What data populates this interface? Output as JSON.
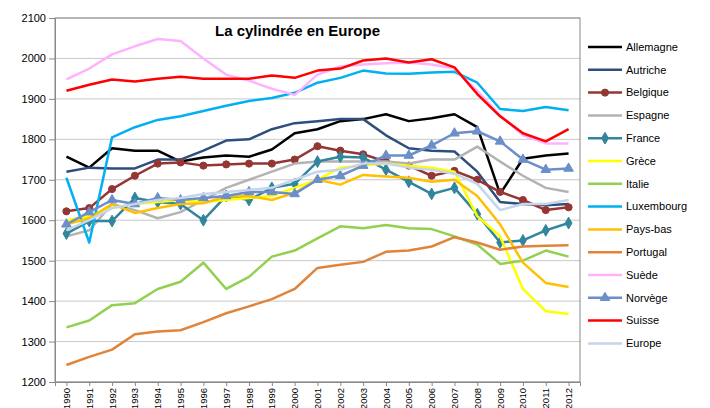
{
  "chart_data": {
    "type": "line",
    "title": "La cylindrée en Europe",
    "categories": [
      "1990",
      "1991",
      "1992",
      "1993",
      "1994",
      "1995",
      "1996",
      "1997",
      "1998",
      "1999",
      "2000",
      "2001",
      "2002",
      "2003",
      "2004",
      "2005",
      "2006",
      "2007",
      "2008",
      "2009",
      "2010",
      "2011",
      "2012"
    ],
    "ylim": [
      1200,
      2100
    ],
    "yticks": [
      1200,
      1300,
      1400,
      1500,
      1600,
      1700,
      1800,
      1900,
      2000,
      2100
    ],
    "grid": true,
    "legend": "right",
    "series": [
      {
        "name": "Allemagne",
        "color": "#000000",
        "marker": "none",
        "values": [
          1757,
          1730,
          1778,
          1772,
          1772,
          1745,
          1755,
          1760,
          1757,
          1775,
          1815,
          1825,
          1845,
          1850,
          1862,
          1845,
          1852,
          1862,
          1830,
          1665,
          1752,
          1760,
          1765
        ]
      },
      {
        "name": "Autriche",
        "color": "#2E4F7D",
        "marker": "none",
        "values": [
          1720,
          1730,
          1728,
          1728,
          1750,
          1750,
          1772,
          1797,
          1800,
          1825,
          1840,
          1845,
          1850,
          1850,
          1810,
          1778,
          1772,
          1770,
          1720,
          1645,
          1640,
          1637,
          1640
        ]
      },
      {
        "name": "Belgique",
        "color": "#943634",
        "marker": "circle",
        "values": [
          1622,
          1630,
          1677,
          1710,
          1740,
          1743,
          1735,
          1738,
          1740,
          1740,
          1750,
          1783,
          1772,
          1763,
          1745,
          1735,
          1710,
          1722,
          1700,
          1670,
          1650,
          1625,
          1632
        ]
      },
      {
        "name": "Espagne",
        "color": "#B3B3B3",
        "marker": "none",
        "values": [
          1560,
          1575,
          1640,
          1625,
          1605,
          1620,
          1650,
          1680,
          1700,
          1720,
          1740,
          1745,
          1745,
          1745,
          1745,
          1740,
          1750,
          1750,
          1782,
          1745,
          1710,
          1680,
          1670
        ]
      },
      {
        "name": "France",
        "color": "#31859C",
        "marker": "diamond",
        "values": [
          1567,
          1598,
          1598,
          1655,
          1645,
          1640,
          1600,
          1660,
          1650,
          1680,
          1690,
          1745,
          1757,
          1755,
          1725,
          1695,
          1665,
          1680,
          1615,
          1545,
          1550,
          1575,
          1593
        ]
      },
      {
        "name": "Grèce",
        "color": "#FFFF00",
        "marker": "none",
        "values": [
          1600,
          1610,
          1630,
          1640,
          1645,
          1650,
          1645,
          1650,
          1655,
          1660,
          1680,
          1700,
          1730,
          1735,
          1740,
          1735,
          1730,
          1720,
          1610,
          1560,
          1430,
          1375,
          1368
        ]
      },
      {
        "name": "Italie",
        "color": "#92D050",
        "marker": "none",
        "values": [
          1335,
          1352,
          1390,
          1395,
          1430,
          1448,
          1495,
          1430,
          1460,
          1510,
          1525,
          1555,
          1585,
          1580,
          1588,
          1580,
          1578,
          1560,
          1540,
          1492,
          1500,
          1525,
          1510
        ]
      },
      {
        "name": "Luxembourg",
        "color": "#00B0F0",
        "marker": "none",
        "values": [
          1705,
          1545,
          1805,
          1830,
          1848,
          1857,
          1870,
          1883,
          1895,
          1902,
          1915,
          1940,
          1952,
          1970,
          1963,
          1962,
          1965,
          1967,
          1940,
          1875,
          1870,
          1880,
          1872
        ]
      },
      {
        "name": "Pays-bas",
        "color": "#FFC000",
        "marker": "none",
        "values": [
          1590,
          1605,
          1640,
          1618,
          1630,
          1640,
          1642,
          1658,
          1660,
          1650,
          1668,
          1700,
          1688,
          1712,
          1708,
          1705,
          1695,
          1700,
          1660,
          1590,
          1495,
          1445,
          1435
        ]
      },
      {
        "name": "Portugal",
        "color": "#E0843A",
        "marker": "none",
        "values": [
          1242,
          1262,
          1280,
          1318,
          1325,
          1328,
          1348,
          1370,
          1387,
          1405,
          1430,
          1482,
          1490,
          1497,
          1522,
          1525,
          1535,
          1558,
          1545,
          1527,
          1535,
          1537,
          1538
        ]
      },
      {
        "name": "Suède",
        "color": "#FFB3FF",
        "marker": "none",
        "values": [
          1948,
          1975,
          2010,
          2030,
          2048,
          2043,
          2000,
          1960,
          1945,
          1925,
          1910,
          1960,
          1980,
          1985,
          1988,
          1990,
          1985,
          1975,
          1920,
          1860,
          1810,
          1790,
          1790
        ]
      },
      {
        "name": "Norvège",
        "color": "#6C8EC9",
        "marker": "triangle",
        "values": [
          1590,
          1620,
          1650,
          1640,
          1655,
          1650,
          1655,
          1660,
          1670,
          1670,
          1665,
          1700,
          1710,
          1735,
          1760,
          1760,
          1785,
          1815,
          1820,
          1795,
          1750,
          1725,
          1728
        ]
      },
      {
        "name": "Suisse",
        "color": "#FF0000",
        "marker": "none",
        "values": [
          1920,
          1935,
          1948,
          1943,
          1950,
          1955,
          1950,
          1950,
          1950,
          1958,
          1952,
          1970,
          1975,
          1995,
          2000,
          1990,
          1998,
          1978,
          1912,
          1857,
          1815,
          1795,
          1825
        ]
      },
      {
        "name": "Europe",
        "color": "#C5D5EA",
        "marker": "none",
        "values": [
          1575,
          1600,
          1630,
          1640,
          1650,
          1655,
          1665,
          1670,
          1675,
          1680,
          1700,
          1720,
          1725,
          1740,
          1740,
          1730,
          1725,
          1715,
          1690,
          1625,
          1640,
          1640,
          1650
        ]
      }
    ]
  }
}
